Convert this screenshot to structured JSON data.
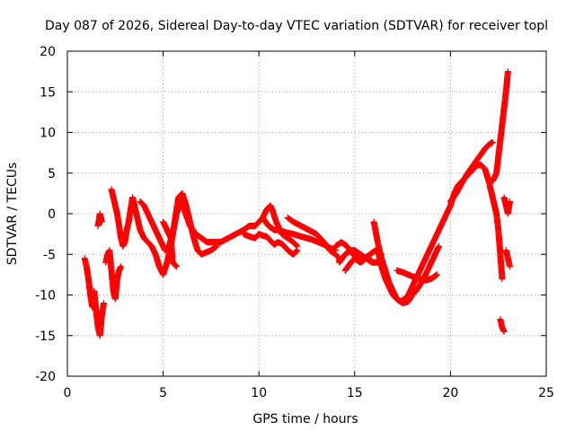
{
  "chart_data": {
    "type": "scatter",
    "title": "Day 087 of 2026, Sidereal Day-to-day VTEC variation (SDTVAR) for receiver topl",
    "xlabel": "GPS time / hours",
    "ylabel": "SDTVAR / TECUs",
    "xlim": [
      0,
      25
    ],
    "ylim": [
      -20,
      20
    ],
    "xticks": [
      0,
      5,
      10,
      15,
      20,
      25
    ],
    "yticks": [
      -20,
      -15,
      -10,
      -5,
      0,
      5,
      10,
      15,
      20
    ],
    "grid": true,
    "marker": "+",
    "series": [
      {
        "name": "SDTVAR",
        "color": "#ff0000",
        "points": [
          [
            0.9,
            -5.5
          ],
          [
            1.0,
            -6.5
          ],
          [
            1.1,
            -8
          ],
          [
            1.2,
            -10
          ],
          [
            1.3,
            -11.5
          ],
          [
            1.4,
            -9.5
          ],
          [
            1.5,
            -12
          ],
          [
            1.6,
            -14
          ],
          [
            1.7,
            -15
          ],
          [
            1.8,
            -12.5
          ],
          [
            1.9,
            -11
          ],
          [
            1.6,
            -1.5
          ],
          [
            1.7,
            0
          ],
          [
            1.8,
            -1
          ],
          [
            2.0,
            -6
          ],
          [
            2.1,
            -5
          ],
          [
            2.2,
            -4.5
          ],
          [
            2.3,
            -7
          ],
          [
            2.4,
            -9.5
          ],
          [
            2.5,
            -10.5
          ],
          [
            2.6,
            -8
          ],
          [
            2.7,
            -7
          ],
          [
            2.8,
            -6.5
          ],
          [
            2.3,
            3
          ],
          [
            2.4,
            2
          ],
          [
            2.5,
            1
          ],
          [
            2.6,
            0
          ],
          [
            2.7,
            -1.5
          ],
          [
            2.8,
            -3
          ],
          [
            2.9,
            -4
          ],
          [
            3.0,
            -3.5
          ],
          [
            3.1,
            -2
          ],
          [
            3.2,
            -1
          ],
          [
            3.3,
            0.5
          ],
          [
            3.4,
            2
          ],
          [
            3.6,
            0
          ],
          [
            3.7,
            -1
          ],
          [
            3.8,
            -2
          ],
          [
            4.0,
            -3
          ],
          [
            4.2,
            -3.5
          ],
          [
            4.4,
            -4
          ],
          [
            4.6,
            -5
          ],
          [
            4.8,
            -6.5
          ],
          [
            5.0,
            -7.5
          ],
          [
            5.2,
            -6
          ],
          [
            5.4,
            -4
          ],
          [
            5.6,
            -1
          ],
          [
            5.8,
            2
          ],
          [
            6.0,
            2.5
          ],
          [
            6.2,
            1
          ],
          [
            6.4,
            -1
          ],
          [
            6.6,
            -3
          ],
          [
            6.8,
            -4.5
          ],
          [
            7.0,
            -5
          ],
          [
            7.2,
            -4.8
          ],
          [
            7.5,
            -4.5
          ],
          [
            7.8,
            -4
          ],
          [
            3.8,
            1.5
          ],
          [
            4.0,
            1
          ],
          [
            4.3,
            -0.5
          ],
          [
            4.6,
            -2
          ],
          [
            4.9,
            -3.5
          ],
          [
            5.1,
            -4.5
          ],
          [
            5.3,
            -4
          ],
          [
            5.5,
            -2.5
          ],
          [
            5.7,
            0
          ],
          [
            5.9,
            1.5
          ],
          [
            6.1,
            0.5
          ],
          [
            6.4,
            -1.5
          ],
          [
            6.7,
            -2.5
          ],
          [
            7.0,
            -3
          ],
          [
            7.3,
            -3.5
          ],
          [
            7.6,
            -3.5
          ],
          [
            8.0,
            -3.5
          ],
          [
            5.0,
            -1
          ],
          [
            5.2,
            -2
          ],
          [
            5.4,
            -3
          ],
          [
            5.5,
            -6
          ],
          [
            5.7,
            -6.5
          ],
          [
            8.0,
            -3.5
          ],
          [
            8.4,
            -3
          ],
          [
            8.8,
            -2.5
          ],
          [
            9.2,
            -2
          ],
          [
            9.5,
            -1.5
          ],
          [
            9.8,
            -1.5
          ],
          [
            10.0,
            -1
          ],
          [
            10.2,
            -0.5
          ],
          [
            10.4,
            0.5
          ],
          [
            10.6,
            1
          ],
          [
            10.7,
            0.5
          ],
          [
            10.9,
            -1
          ],
          [
            11.2,
            -2.5
          ],
          [
            11.5,
            -3
          ],
          [
            11.8,
            -3.5
          ],
          [
            12.0,
            -4
          ],
          [
            9.2,
            -2.5
          ],
          [
            9.5,
            -2.8
          ],
          [
            9.8,
            -3
          ],
          [
            10.0,
            -2.5
          ],
          [
            10.2,
            -2.7
          ],
          [
            10.4,
            -2.8
          ],
          [
            10.6,
            -3.3
          ],
          [
            10.8,
            -3.8
          ],
          [
            11.0,
            -3.5
          ],
          [
            11.2,
            -3.7
          ],
          [
            11.4,
            -4.2
          ],
          [
            11.6,
            -4.7
          ],
          [
            11.8,
            -5
          ],
          [
            12.0,
            -4.5
          ],
          [
            10.2,
            -0.5
          ],
          [
            10.5,
            -1.5
          ],
          [
            10.8,
            -2
          ],
          [
            11.0,
            -2
          ],
          [
            11.4,
            -2.3
          ],
          [
            11.8,
            -2.5
          ],
          [
            12.2,
            -2.8
          ],
          [
            12.5,
            -3
          ],
          [
            12.8,
            -3.2
          ],
          [
            13.1,
            -3.5
          ],
          [
            13.4,
            -3.8
          ],
          [
            13.7,
            -4.2
          ],
          [
            14.0,
            -4.5
          ],
          [
            11.5,
            -0.5
          ],
          [
            11.8,
            -1
          ],
          [
            12.2,
            -1.5
          ],
          [
            12.6,
            -2
          ],
          [
            13.0,
            -2.5
          ],
          [
            13.4,
            -3.5
          ],
          [
            13.7,
            -4.5
          ],
          [
            14.0,
            -5
          ],
          [
            14.2,
            -5.5
          ],
          [
            14.2,
            -6
          ],
          [
            14.5,
            -5
          ],
          [
            14.8,
            -4.5
          ],
          [
            15.0,
            -4.5
          ],
          [
            15.3,
            -5
          ],
          [
            15.6,
            -5.5
          ],
          [
            15.9,
            -6
          ],
          [
            16.2,
            -6
          ],
          [
            16.5,
            -6.5
          ],
          [
            14.0,
            -4
          ],
          [
            14.3,
            -3.5
          ],
          [
            14.6,
            -4
          ],
          [
            14.9,
            -5
          ],
          [
            15.2,
            -5.5
          ],
          [
            15.5,
            -5.5
          ],
          [
            15.8,
            -5
          ],
          [
            16.1,
            -4.5
          ],
          [
            16.4,
            -5
          ],
          [
            14.5,
            -7
          ],
          [
            14.8,
            -6
          ],
          [
            15.0,
            -5.5
          ],
          [
            15.3,
            -6
          ],
          [
            15.6,
            -5.5
          ],
          [
            15.9,
            -5.8
          ],
          [
            16.0,
            -1
          ],
          [
            16.2,
            -3.5
          ],
          [
            16.4,
            -5.5
          ],
          [
            16.6,
            -7
          ],
          [
            16.8,
            -8.5
          ],
          [
            17.0,
            -9.5
          ],
          [
            17.2,
            -10.5
          ],
          [
            17.4,
            -10.8
          ],
          [
            17.6,
            -10.5
          ],
          [
            17.8,
            -10
          ],
          [
            18.0,
            -9
          ],
          [
            18.2,
            -8
          ],
          [
            18.4,
            -7
          ],
          [
            18.6,
            -6
          ],
          [
            18.8,
            -5
          ],
          [
            19.0,
            -4
          ],
          [
            19.2,
            -3
          ],
          [
            19.4,
            -2
          ],
          [
            19.6,
            -1
          ],
          [
            19.8,
            0
          ],
          [
            20.0,
            1
          ],
          [
            20.2,
            2.5
          ],
          [
            20.4,
            3.5
          ],
          [
            20.6,
            4
          ],
          [
            20.8,
            4.5
          ],
          [
            21.0,
            5
          ],
          [
            21.2,
            5.5
          ],
          [
            21.4,
            6
          ],
          [
            21.6,
            6
          ],
          [
            21.8,
            5.5
          ],
          [
            22.0,
            4
          ],
          [
            22.2,
            2
          ],
          [
            22.4,
            0
          ],
          [
            22.5,
            -2
          ],
          [
            22.6,
            -5
          ],
          [
            22.7,
            -8
          ],
          [
            16.2,
            -4.5
          ],
          [
            16.4,
            -6.5
          ],
          [
            16.6,
            -8
          ],
          [
            16.8,
            -9
          ],
          [
            17.0,
            -10
          ],
          [
            17.2,
            -10.5
          ],
          [
            17.5,
            -11
          ],
          [
            17.8,
            -10.8
          ],
          [
            18.0,
            -10
          ],
          [
            18.2,
            -9.5
          ],
          [
            18.4,
            -8.8
          ],
          [
            18.6,
            -8
          ],
          [
            18.8,
            -7
          ],
          [
            19.0,
            -6
          ],
          [
            19.2,
            -5
          ],
          [
            19.4,
            -4
          ],
          [
            17.2,
            -7
          ],
          [
            17.5,
            -7.2
          ],
          [
            17.8,
            -7.5
          ],
          [
            18.1,
            -7.8
          ],
          [
            18.4,
            -8
          ],
          [
            18.7,
            -8.2
          ],
          [
            19.0,
            -8
          ],
          [
            19.3,
            -7.5
          ],
          [
            20.0,
            1.5
          ],
          [
            20.3,
            2.5
          ],
          [
            20.6,
            3.8
          ],
          [
            20.9,
            5
          ],
          [
            21.2,
            6
          ],
          [
            21.5,
            7
          ],
          [
            21.8,
            8
          ],
          [
            22.0,
            8.5
          ],
          [
            22.2,
            8.8
          ],
          [
            22.2,
            4
          ],
          [
            22.4,
            5
          ],
          [
            22.5,
            7
          ],
          [
            22.6,
            9
          ],
          [
            22.7,
            11
          ],
          [
            22.8,
            13
          ],
          [
            22.9,
            15
          ],
          [
            23.0,
            17.5
          ],
          [
            22.8,
            2
          ],
          [
            22.9,
            1
          ],
          [
            23.0,
            0
          ],
          [
            23.1,
            1.5
          ],
          [
            22.6,
            -13
          ],
          [
            22.7,
            -14
          ],
          [
            22.8,
            -14.5
          ],
          [
            22.9,
            -4.5
          ],
          [
            23.0,
            -5.5
          ],
          [
            23.1,
            -6.5
          ]
        ]
      }
    ]
  }
}
